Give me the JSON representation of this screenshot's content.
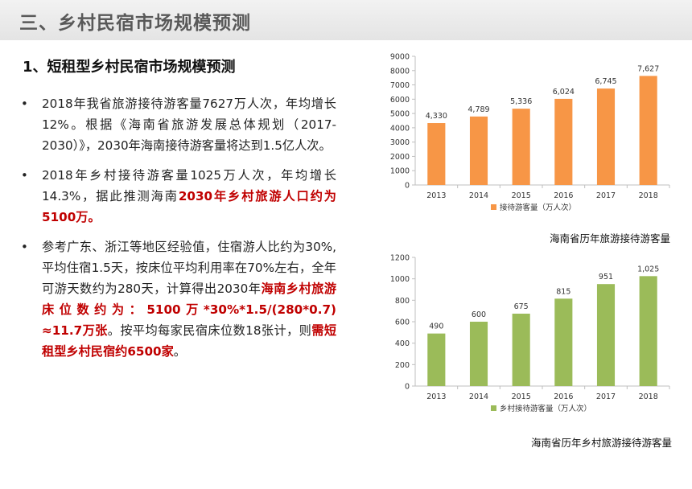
{
  "header": {
    "title": "三、乡村民宿市场规模预测"
  },
  "section": {
    "title": "1、短租型乡村民宿市场规模预测"
  },
  "bullets": [
    {
      "parts": [
        {
          "text": "2018年我省旅游接待游客量7627万人次，年均增长12%。根据《海南省旅游发展总体规划（2017-2030）》，2030年海南接待游客量将达到1.5亿人次。",
          "emph": false
        }
      ]
    },
    {
      "parts": [
        {
          "text": "2018年乡村接待游客量1025万人次，年均增长14.3%，据此推测海南",
          "emph": false
        },
        {
          "text": "2030年乡村旅游人口约为5100万。",
          "emph": true
        }
      ]
    },
    {
      "parts": [
        {
          "text": "参考广东、浙江等地区经验值，住宿游人比约为30%,平均住宿1.5天，按床位平均利用率在70%左右，全年可游天数约为280天，计算得出2030年",
          "emph": false
        },
        {
          "text": "海南乡村旅游床位数约为：5100万*30%*1.5/(280*0.7) ≈11.7万张",
          "emph": true
        },
        {
          "text": "。按平均每家民宿床位数18张计，则",
          "emph": false
        },
        {
          "text": "需短租型乡村民宿约6500家",
          "emph": true
        },
        {
          "text": "。",
          "emph": false
        }
      ]
    }
  ],
  "chart_data": [
    {
      "type": "bar",
      "categories": [
        "2013",
        "2014",
        "2015",
        "2016",
        "2017",
        "2018"
      ],
      "series": [
        {
          "name": "接待游客量（万人次）",
          "values": [
            4330,
            4789,
            5336,
            6024,
            6745,
            7627
          ],
          "labels": [
            "4,330",
            "4,789",
            "5,336",
            "6,024",
            "6,745",
            "7,627"
          ]
        }
      ],
      "ylim": [
        0,
        9000
      ],
      "yticks": [
        0,
        1000,
        2000,
        3000,
        4000,
        5000,
        6000,
        7000,
        8000,
        9000
      ],
      "color": "#f79646",
      "legend_position": "bottom",
      "caption": "海南省历年旅游接待游客量"
    },
    {
      "type": "bar",
      "categories": [
        "2013",
        "2014",
        "2015",
        "2016",
        "2017",
        "2018"
      ],
      "series": [
        {
          "name": "乡村接待游客量（万人次）",
          "values": [
            490,
            600,
            675,
            815,
            951,
            1025
          ],
          "labels": [
            "490",
            "600",
            "675",
            "815",
            "951",
            "1,025"
          ]
        }
      ],
      "ylim": [
        0,
        1200
      ],
      "yticks": [
        0,
        200,
        400,
        600,
        800,
        1000,
        1200
      ],
      "color": "#9bbb59",
      "legend_position": "bottom",
      "caption": "海南省历年乡村旅游接待游客量"
    }
  ]
}
